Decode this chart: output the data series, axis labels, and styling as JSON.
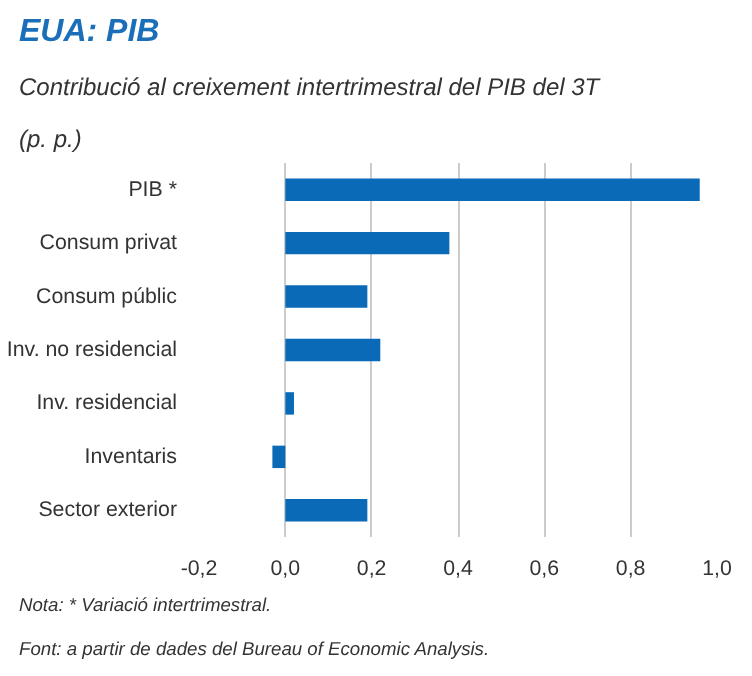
{
  "chart_data": {
    "type": "bar",
    "orientation": "horizontal",
    "title": "EUA: PIB",
    "subtitle": "Contribució al creixement intertrimestral del PIB del 3T",
    "xlabel": "(p. p.)",
    "categories": [
      "PIB *",
      "Consum privat",
      "Consum públic",
      "Inv. no residencial",
      "Inv. residencial",
      "Inventaris",
      "Sector exterior"
    ],
    "values": [
      0.96,
      0.38,
      0.19,
      0.22,
      0.02,
      -0.03,
      0.19
    ],
    "color": "#0a6ab8",
    "xlim": [
      -0.2,
      1.0
    ],
    "xticks": [
      {
        "value": -0.2,
        "label": "-0,2"
      },
      {
        "value": 0,
        "label": "0,0"
      },
      {
        "value": 0.2,
        "label": "0,2"
      },
      {
        "value": 0.4,
        "label": "0,4"
      },
      {
        "value": 0.6,
        "label": "0,6"
      },
      {
        "value": 0.8,
        "label": "0,8"
      },
      {
        "value": 1.0,
        "label": "1,0"
      }
    ],
    "grid": "x",
    "annotations": [
      "Nota: * Variació intertrimestral.",
      "Font: a partir de dades del Bureau of Economic Analysis."
    ]
  }
}
